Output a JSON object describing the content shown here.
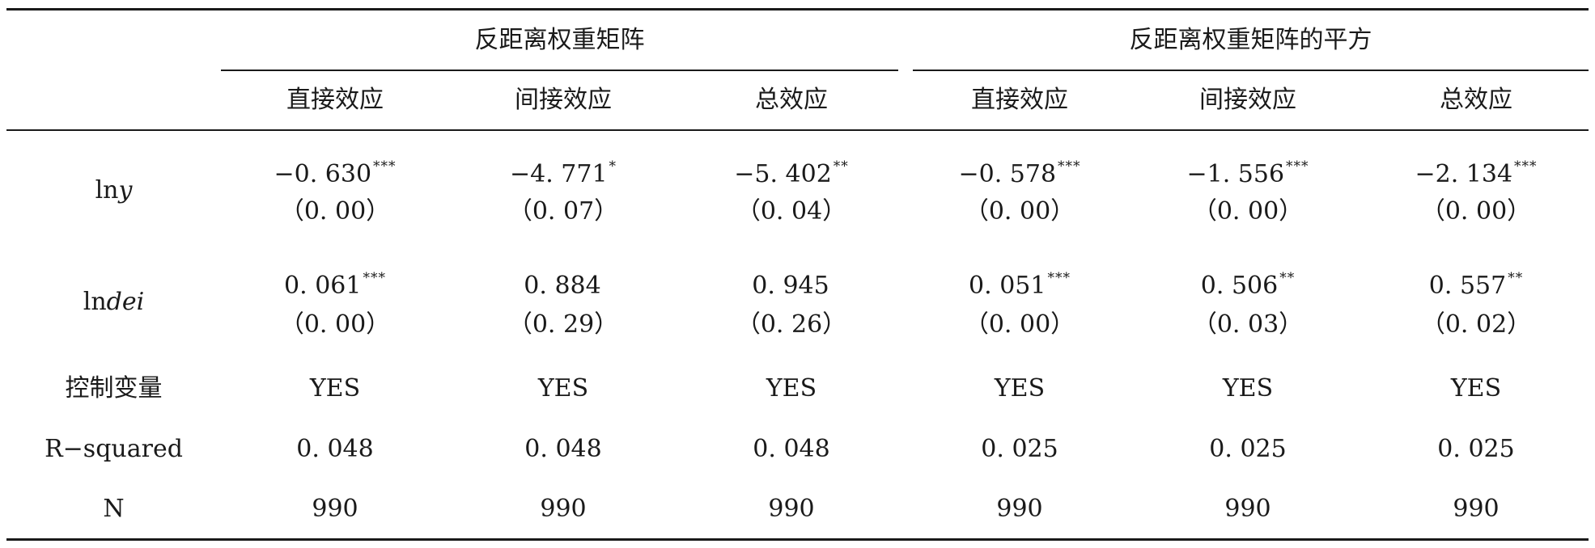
{
  "header": {
    "groups": [
      {
        "label": "反距离权重矩阵"
      },
      {
        "label": "反距离权重矩阵的平方"
      }
    ],
    "columns": [
      "直接效应",
      "间接效应",
      "总效应",
      "直接效应",
      "间接效应",
      "总效应"
    ]
  },
  "rows": [
    {
      "stub_prefix": "ln",
      "stub_italic": "y",
      "coefs": [
        {
          "value": "−0. 630",
          "stars": "***"
        },
        {
          "value": "−4. 771",
          "stars": "*"
        },
        {
          "value": "−5. 402",
          "stars": "**"
        },
        {
          "value": "−0. 578",
          "stars": "***"
        },
        {
          "value": "−1. 556",
          "stars": "***"
        },
        {
          "value": "−2. 134",
          "stars": "***"
        }
      ],
      "pvalues": [
        "（0. 00）",
        "（0. 07）",
        "（0. 04）",
        "（0. 00）",
        "（0. 00）",
        "（0. 00）"
      ]
    },
    {
      "stub_prefix": "ln",
      "stub_italic": "dei",
      "coefs": [
        {
          "value": "0. 061",
          "stars": "***"
        },
        {
          "value": "0. 884",
          "stars": ""
        },
        {
          "value": "0. 945",
          "stars": ""
        },
        {
          "value": "0. 051",
          "stars": "***"
        },
        {
          "value": "0. 506",
          "stars": "**"
        },
        {
          "value": "0. 557",
          "stars": "**"
        }
      ],
      "pvalues": [
        "（0. 00）",
        "（0. 29）",
        "（0. 26）",
        "（0. 00）",
        "（0. 03）",
        "（0. 02）"
      ]
    }
  ],
  "footer_rows": [
    {
      "label": "控制变量",
      "values": [
        "YES",
        "YES",
        "YES",
        "YES",
        "YES",
        "YES"
      ]
    },
    {
      "label": "R−squared",
      "values": [
        "0. 048",
        "0. 048",
        "0. 048",
        "0. 025",
        "0. 025",
        "0. 025"
      ]
    },
    {
      "label": "N",
      "values": [
        "990",
        "990",
        "990",
        "990",
        "990",
        "990"
      ]
    }
  ]
}
